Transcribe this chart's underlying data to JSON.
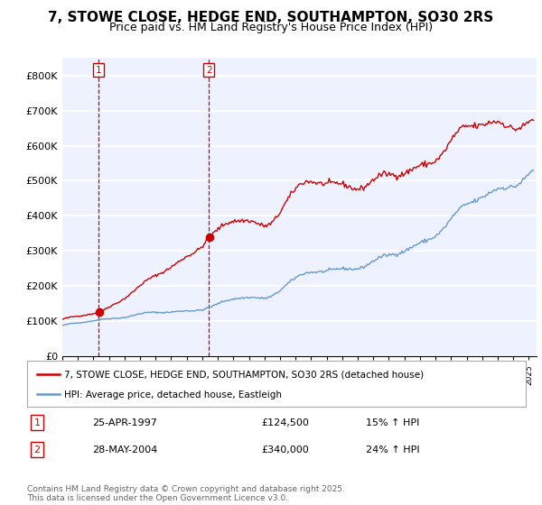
{
  "title": "7, STOWE CLOSE, HEDGE END, SOUTHAMPTON, SO30 2RS",
  "subtitle": "Price paid vs. HM Land Registry's House Price Index (HPI)",
  "title_fontsize": 11,
  "subtitle_fontsize": 9,
  "ylim": [
    0,
    850000
  ],
  "yticks": [
    0,
    100000,
    200000,
    300000,
    400000,
    500000,
    600000,
    700000,
    800000
  ],
  "ytick_labels": [
    "£0",
    "£100K",
    "£200K",
    "£300K",
    "£400K",
    "£500K",
    "£600K",
    "£700K",
    "£800K"
  ],
  "property_color": "#cc0000",
  "hpi_color": "#6699cc",
  "purchase1_year": 1997.32,
  "purchase1_price": 124500,
  "purchase1_label": "1",
  "purchase1_date": "25-APR-1997",
  "purchase1_pct": "15% ↑ HPI",
  "purchase2_year": 2004.42,
  "purchase2_price": 340000,
  "purchase2_label": "2",
  "purchase2_date": "28-MAY-2004",
  "purchase2_pct": "24% ↑ HPI",
  "legend_property": "7, STOWE CLOSE, HEDGE END, SOUTHAMPTON, SO30 2RS (detached house)",
  "legend_hpi": "HPI: Average price, detached house, Eastleigh",
  "footer": "Contains HM Land Registry data © Crown copyright and database right 2025.\nThis data is licensed under the Open Government Licence v3.0.",
  "background_color": "#eef2ff",
  "grid_color": "#ffffff"
}
